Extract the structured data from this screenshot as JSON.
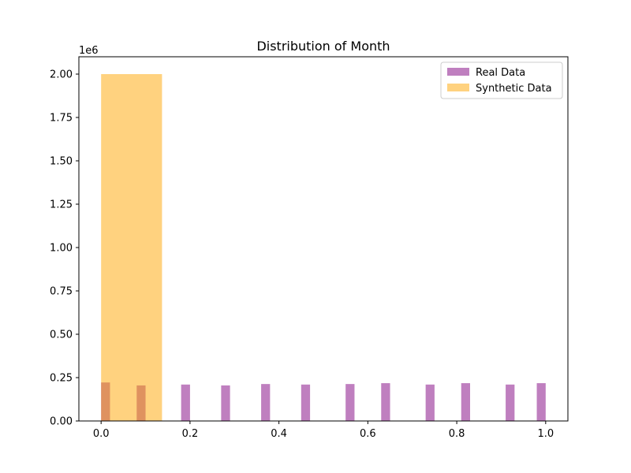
{
  "chart_data": {
    "type": "bar",
    "title": "Distribution of Month",
    "xlabel": "",
    "ylabel": "",
    "y_offset_text": "1e6",
    "xlim": [
      -0.05,
      1.05
    ],
    "ylim": [
      0,
      2.1
    ],
    "x_ticks": [
      0.0,
      0.2,
      0.4,
      0.6,
      0.8,
      1.0
    ],
    "x_tick_labels": [
      "0.0",
      "0.2",
      "0.4",
      "0.6",
      "0.8",
      "1.0"
    ],
    "y_ticks": [
      0.0,
      0.25,
      0.5,
      0.75,
      1.0,
      1.25,
      1.5,
      1.75,
      2.0
    ],
    "y_tick_labels": [
      "0.00",
      "0.25",
      "0.50",
      "0.75",
      "1.00",
      "1.25",
      "1.50",
      "1.75",
      "2.00"
    ],
    "legend_position": "upper right",
    "series": [
      {
        "name": "Real Data",
        "color": "#800080",
        "opacity": 0.5,
        "bin_width": 0.02,
        "bins": [
          {
            "x": 0.0,
            "value": 0.222
          },
          {
            "x": 0.08,
            "value": 0.205
          },
          {
            "x": 0.18,
            "value": 0.21
          },
          {
            "x": 0.27,
            "value": 0.205
          },
          {
            "x": 0.36,
            "value": 0.213
          },
          {
            "x": 0.45,
            "value": 0.21
          },
          {
            "x": 0.55,
            "value": 0.213
          },
          {
            "x": 0.63,
            "value": 0.218
          },
          {
            "x": 0.73,
            "value": 0.21
          },
          {
            "x": 0.81,
            "value": 0.218
          },
          {
            "x": 0.91,
            "value": 0.21
          },
          {
            "x": 0.98,
            "value": 0.218
          }
        ]
      },
      {
        "name": "Synthetic Data",
        "color": "#FFA500",
        "opacity": 0.5,
        "bin_width": 0.137,
        "bins": [
          {
            "x": 0.0,
            "value": 2.0
          }
        ]
      }
    ]
  }
}
